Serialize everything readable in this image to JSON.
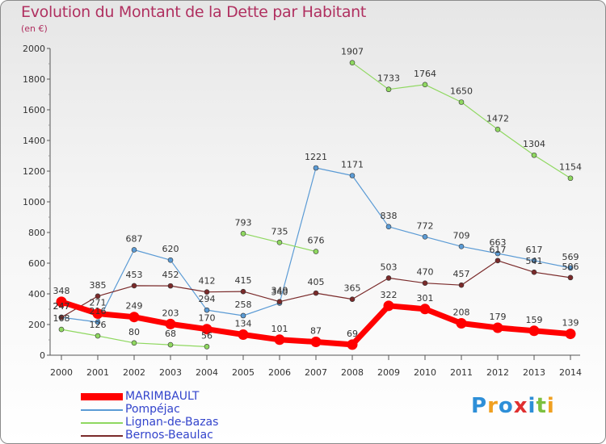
{
  "title": "Evolution du Montant de la Dette par Habitant",
  "subtitle": "(en €)",
  "logo": {
    "text": "Proxiti",
    "letters": [
      {
        "char": "P",
        "color": "#2e8fd8"
      },
      {
        "char": "r",
        "color": "#f0a020"
      },
      {
        "char": "o",
        "color": "#2e8fd8"
      },
      {
        "char": "x",
        "color": "#e03030"
      },
      {
        "char": "i",
        "color": "#2e8fd8"
      },
      {
        "char": "t",
        "color": "#7cc040"
      },
      {
        "char": "i",
        "color": "#f0a020"
      }
    ]
  },
  "chart_data": {
    "type": "line",
    "x": [
      "2000",
      "2001",
      "2002",
      "2003",
      "2004",
      "2005",
      "2006",
      "2007",
      "2008",
      "2009",
      "2010",
      "2011",
      "2012",
      "2013",
      "2014"
    ],
    "ylim": [
      0,
      2000
    ],
    "yticks": [
      "0",
      "200",
      "400",
      "600",
      "800",
      "1000",
      "1200",
      "1400",
      "1600",
      "1800",
      "2000"
    ],
    "grid": false,
    "legend_position": "bottom-left",
    "series": [
      {
        "name": "MARIMBAULT",
        "color": "#ff0000",
        "emphasis": true,
        "values": [
          348,
          271,
          249,
          203,
          170,
          134,
          101,
          87,
          69,
          322,
          301,
          208,
          179,
          159,
          139
        ],
        "labels": [
          "348",
          "271",
          "249",
          "203",
          "170",
          "134",
          "101",
          "87",
          "69",
          "322",
          "301",
          "208",
          "179",
          "159",
          "139"
        ]
      },
      {
        "name": "Pompéjac",
        "color": "#5b9bd5",
        "emphasis": false,
        "values": [
          247,
          216,
          687,
          620,
          294,
          258,
          340,
          1221,
          1171,
          838,
          772,
          709,
          663,
          617,
          569
        ],
        "labels": [
          "247",
          "216",
          "687",
          "620",
          "294",
          "258",
          "340",
          "1221",
          "1171",
          "838",
          "772",
          "709",
          "663",
          "617",
          "569"
        ]
      },
      {
        "name": "Lignan-de-Bazas",
        "color": "#8fd860",
        "emphasis": false,
        "values": [
          168,
          126,
          80,
          68,
          56,
          793,
          735,
          676,
          1907,
          1733,
          1764,
          1650,
          1472,
          1304,
          1154
        ],
        "breaks_after": [
          4,
          7
        ],
        "labels": [
          "168",
          "126",
          "80",
          "68",
          "56",
          "793",
          "735",
          "676",
          "1907",
          "1733",
          "1764",
          "1650",
          "1472",
          "1304",
          "1154"
        ]
      },
      {
        "name": "Bernos-Beaulac",
        "color": "#7a2a2a",
        "emphasis": false,
        "values": [
          247,
          385,
          453,
          452,
          412,
          415,
          349,
          405,
          365,
          503,
          470,
          457,
          617,
          541,
          506
        ],
        "labels": [
          "247",
          "385",
          "453",
          "452",
          "412",
          "415",
          "349",
          "405",
          "365",
          "503",
          "470",
          "457",
          "617",
          "541",
          "506"
        ]
      }
    ]
  }
}
